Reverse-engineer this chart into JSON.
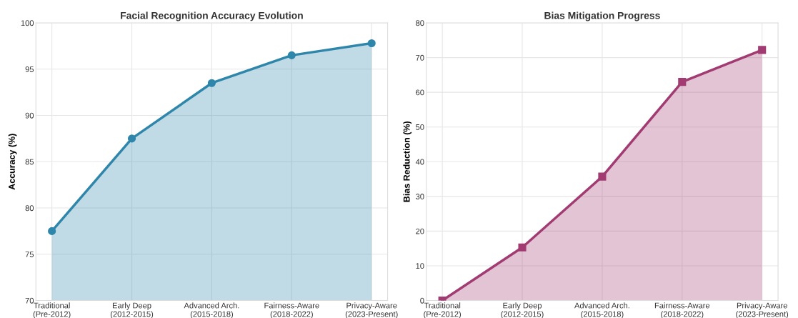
{
  "chart_data": [
    {
      "type": "area",
      "title": "Facial Recognition Accuracy Evolution",
      "ylabel": "Accuracy (%)",
      "categories": [
        "Traditional\n(Pre-2012)",
        "Early Deep\n(2012-2015)",
        "Advanced Arch.\n(2015-2018)",
        "Fairness-Aware\n(2018-2022)",
        "Privacy-Aware\n(2023-Present)"
      ],
      "series": [
        {
          "color": "#2e86ab",
          "values": [
            77.5,
            87.5,
            93.5,
            96.5,
            97.8
          ]
        }
      ],
      "ylim": [
        70,
        100
      ],
      "yticks": [
        70,
        75,
        80,
        85,
        90,
        95,
        100
      ],
      "grid": true,
      "marker": "circle",
      "line_style": "solid"
    },
    {
      "type": "area",
      "title": "Bias Mitigation Progress",
      "ylabel": "Bias Reduction (%)",
      "categories": [
        "Traditional\n(Pre-2012)",
        "Early Deep\n(2012-2015)",
        "Advanced Arch.\n(2015-2018)",
        "Fairness-Aware\n(2018-2022)",
        "Privacy-Aware\n(2023-Present)"
      ],
      "series": [
        {
          "color": "#a23b72",
          "values": [
            0,
            15.3,
            35.7,
            63,
            72.2
          ]
        }
      ],
      "ylim": [
        0,
        80
      ],
      "yticks": [
        0,
        10,
        20,
        30,
        40,
        50,
        60,
        70,
        80
      ],
      "grid": true,
      "marker": "square",
      "line_style": "solid"
    }
  ]
}
